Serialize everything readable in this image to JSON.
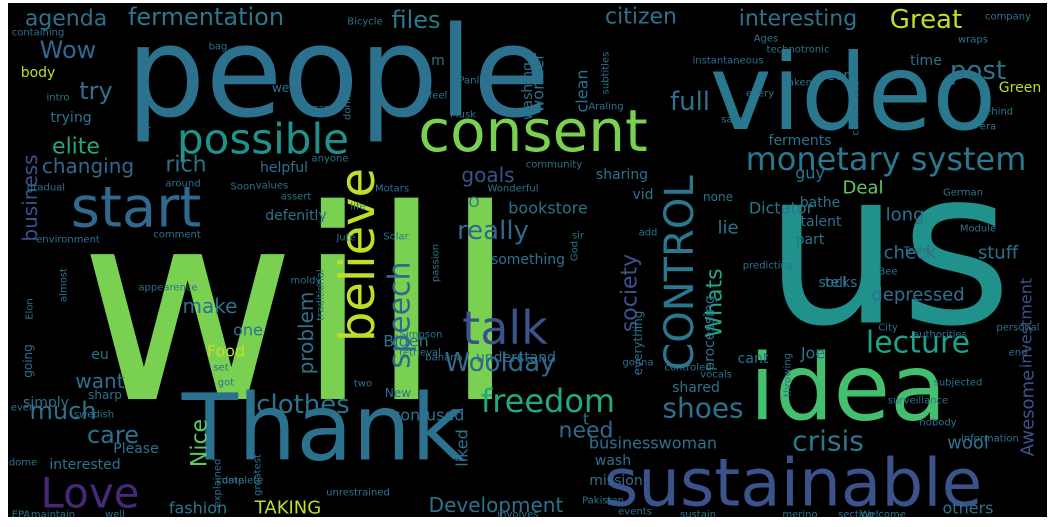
{
  "title": "",
  "words": [
    {
      "text": "will",
      "color": "#7ad151"
    },
    {
      "text": "us",
      "color": "#21918c"
    },
    {
      "text": "people",
      "color": "#2c728e"
    },
    {
      "text": "video",
      "color": "#2a788e"
    },
    {
      "text": "Thank",
      "color": "#2c728e"
    },
    {
      "text": "idea",
      "color": "#44bf70"
    },
    {
      "text": "sustainable",
      "color": "#3b528b"
    },
    {
      "text": "consent",
      "color": "#7ad151"
    },
    {
      "text": "start",
      "color": "#31688e"
    },
    {
      "text": "possible",
      "color": "#21918c"
    },
    {
      "text": "believe",
      "color": "#bddf26"
    },
    {
      "text": "talk",
      "color": "#3b528b"
    },
    {
      "text": "CONTROL",
      "color": "#2a788e"
    },
    {
      "text": "monetary system",
      "color": "#2a788e"
    },
    {
      "text": "Love",
      "color": "#482878"
    },
    {
      "text": "lecture",
      "color": "#1fa187"
    },
    {
      "text": "speech",
      "color": "#31688e"
    },
    {
      "text": "freedom",
      "color": "#22a884"
    },
    {
      "text": "clothes",
      "color": "#2c728e"
    },
    {
      "text": "shoes",
      "color": "#2c728e"
    },
    {
      "text": "crisis",
      "color": "#2a788e"
    },
    {
      "text": "Woolday",
      "color": "#31688e"
    },
    {
      "text": "Great",
      "color": "#bddf26"
    },
    {
      "text": "post",
      "color": "#2c728e"
    },
    {
      "text": "full",
      "color": "#2c728e"
    },
    {
      "text": "interesting",
      "color": "#2c728e"
    },
    {
      "text": "citizen",
      "color": "#2c728e"
    },
    {
      "text": "fermentation",
      "color": "#2a788e"
    },
    {
      "text": "agenda",
      "color": "#2c728e"
    },
    {
      "text": "files",
      "color": "#2a788e"
    },
    {
      "text": "Wow",
      "color": "#31688e"
    },
    {
      "text": "try",
      "color": "#2c728e"
    },
    {
      "text": "elite",
      "color": "#22a884"
    },
    {
      "text": "rich",
      "color": "#2c728e"
    },
    {
      "text": "changing",
      "color": "#31688e"
    },
    {
      "text": "business",
      "color": "#3b528b"
    },
    {
      "text": "goals",
      "color": "#3b528b"
    },
    {
      "text": "really",
      "color": "#31688e"
    },
    {
      "text": "society",
      "color": "#3b528b"
    },
    {
      "text": "Whats",
      "color": "#22a884"
    },
    {
      "text": "problem",
      "color": "#2c728e"
    },
    {
      "text": "make",
      "color": "#2c728e"
    },
    {
      "text": "Nice",
      "color": "#5ec962"
    },
    {
      "text": "care",
      "color": "#2c728e"
    },
    {
      "text": "much",
      "color": "#2c728e"
    },
    {
      "text": "want",
      "color": "#2c728e"
    },
    {
      "text": "need",
      "color": "#31688e"
    },
    {
      "text": "Development",
      "color": "#2c728e"
    },
    {
      "text": "TAKING",
      "color": "#bddf26"
    },
    {
      "text": "fashion",
      "color": "#2a788e"
    },
    {
      "text": "Awesome",
      "color": "#3b528b"
    },
    {
      "text": "depressed",
      "color": "#2c728e"
    },
    {
      "text": "investment",
      "color": "#3b528b"
    },
    {
      "text": "wool",
      "color": "#2c728e"
    },
    {
      "text": "others",
      "color": "#2c728e"
    },
    {
      "text": "check",
      "color": "#2c728e"
    },
    {
      "text": "stuff",
      "color": "#2c728e"
    },
    {
      "text": "long",
      "color": "#2c728e"
    },
    {
      "text": "Deal",
      "color": "#5ec962"
    },
    {
      "text": "guy",
      "color": "#2c728e"
    },
    {
      "text": "Dictator",
      "color": "#2c728e"
    },
    {
      "text": "lie",
      "color": "#2c728e"
    },
    {
      "text": "bookstore",
      "color": "#2c728e"
    },
    {
      "text": "Food",
      "color": "#bddf26"
    },
    {
      "text": "Joe",
      "color": "#2c728e"
    },
    {
      "text": "Biden",
      "color": "#2c728e"
    },
    {
      "text": "liked",
      "color": "#2c728e"
    },
    {
      "text": "confused",
      "color": "#2c728e"
    },
    {
      "text": "understand",
      "color": "#2c728e"
    },
    {
      "text": "businesswoman",
      "color": "#2c728e"
    },
    {
      "text": "shared",
      "color": "#2c728e"
    },
    {
      "text": "mission",
      "color": "#2c728e"
    },
    {
      "text": "interested",
      "color": "#2c728e"
    },
    {
      "text": "simply",
      "color": "#2c728e"
    },
    {
      "text": "sharp",
      "color": "#2c728e"
    },
    {
      "text": "going",
      "color": "#2c728e"
    },
    {
      "text": "eu",
      "color": "#2c728e"
    },
    {
      "text": "one",
      "color": "#2c728e"
    },
    {
      "text": "helpful",
      "color": "#2c728e"
    },
    {
      "text": "defenitly",
      "color": "#2c728e"
    },
    {
      "text": "sharing",
      "color": "#2c728e"
    },
    {
      "text": "processing",
      "color": "#2c728e"
    },
    {
      "text": "socks",
      "color": "#2c728e"
    },
    {
      "text": "tell",
      "color": "#2c728e"
    },
    {
      "text": "part",
      "color": "#2c728e"
    },
    {
      "text": "talent",
      "color": "#2c728e"
    },
    {
      "text": "bathe",
      "color": "#2c728e"
    },
    {
      "text": "ferments",
      "color": "#2c728e"
    },
    {
      "text": "seem",
      "color": "#2c728e"
    },
    {
      "text": "time",
      "color": "#2c728e"
    },
    {
      "text": "Green",
      "color": "#bddf26"
    },
    {
      "text": "clean",
      "color": "#2c728e"
    },
    {
      "text": "wonder",
      "color": "#2c728e"
    },
    {
      "text": "washing",
      "color": "#2c728e"
    },
    {
      "text": "vid",
      "color": "#2c728e"
    },
    {
      "text": "none",
      "color": "#2c728e"
    },
    {
      "text": "cant",
      "color": "#2c728e"
    },
    {
      "text": "something",
      "color": "#2c728e"
    },
    {
      "text": "everything",
      "color": "#2c728e"
    },
    {
      "text": "wash",
      "color": "#2c728e"
    },
    {
      "text": "body",
      "color": "#bddf26"
    },
    {
      "text": "trying",
      "color": "#2c728e"
    },
    {
      "text": "Please",
      "color": "#2c728e"
    },
    {
      "text": "Wonderful",
      "color": "#2c728e"
    },
    {
      "text": "Pakistan",
      "color": "#2c728e"
    },
    {
      "text": "German",
      "color": "#2c728e"
    },
    {
      "text": "surveillance",
      "color": "#2c728e"
    },
    {
      "text": "company",
      "color": "#2c728e"
    },
    {
      "text": "technotronic",
      "color": "#2c728e"
    },
    {
      "text": "Bicycle",
      "color": "#2c728e"
    },
    {
      "text": "Musk",
      "color": "#2c728e"
    },
    {
      "text": "Elon",
      "color": "#2c728e"
    },
    {
      "text": "Tesla",
      "color": "#2c728e"
    },
    {
      "text": "God",
      "color": "#2c728e"
    },
    {
      "text": "sponsored",
      "color": "#2c728e"
    },
    {
      "text": "intro",
      "color": "#2c728e"
    },
    {
      "text": "game",
      "color": "#2c728e"
    },
    {
      "text": "wet",
      "color": "#2c728e"
    },
    {
      "text": "Motars",
      "color": "#2c728e"
    },
    {
      "text": "Panlipunan",
      "color": "#2c728e"
    },
    {
      "text": "community",
      "color": "#2c728e"
    },
    {
      "text": "Solar",
      "color": "#2c728e"
    },
    {
      "text": "Jute",
      "color": "#2c728e"
    },
    {
      "text": "passion",
      "color": "#2c728e"
    },
    {
      "text": "values",
      "color": "#2c728e"
    },
    {
      "text": "assert",
      "color": "#2c728e"
    },
    {
      "text": "around",
      "color": "#2c728e"
    },
    {
      "text": "gradual",
      "color": "#2c728e"
    },
    {
      "text": "environment",
      "color": "#2c728e"
    },
    {
      "text": "comment",
      "color": "#2c728e"
    },
    {
      "text": "date",
      "color": "#2c728e"
    },
    {
      "text": "explained",
      "color": "#2c728e"
    },
    {
      "text": "greatest",
      "color": "#2c728e"
    },
    {
      "text": "complete",
      "color": "#2c728e"
    },
    {
      "text": "unrestrained",
      "color": "#2c728e"
    },
    {
      "text": "events",
      "color": "#2c728e"
    },
    {
      "text": "sustain",
      "color": "#2c728e"
    },
    {
      "text": "merino",
      "color": "#2c728e"
    },
    {
      "text": "section",
      "color": "#2c728e"
    },
    {
      "text": "Welcome",
      "color": "#2c728e"
    },
    {
      "text": "involves",
      "color": "#2c728e"
    },
    {
      "text": "well",
      "color": "#2c728e"
    },
    {
      "text": "maintain",
      "color": "#2c728e"
    },
    {
      "text": "EPA",
      "color": "#2c728e"
    },
    {
      "text": "dome",
      "color": "#2c728e"
    },
    {
      "text": "even",
      "color": "#2c728e"
    },
    {
      "text": "swedish",
      "color": "#2c728e"
    },
    {
      "text": "two",
      "color": "#2c728e"
    },
    {
      "text": "got",
      "color": "#2c728e"
    },
    {
      "text": "set",
      "color": "#2c728e"
    },
    {
      "text": "moldy",
      "color": "#2c728e"
    },
    {
      "text": "traditional",
      "color": "#2c728e"
    },
    {
      "text": "banana",
      "color": "#2c728e"
    },
    {
      "text": "retrieval",
      "color": "#2c728e"
    },
    {
      "text": "Simpson",
      "color": "#2c728e"
    },
    {
      "text": "sir",
      "color": "#2c728e"
    },
    {
      "text": "add",
      "color": "#2c728e"
    },
    {
      "text": "predicting",
      "color": "#2c728e"
    },
    {
      "text": "Bee",
      "color": "#2c728e"
    },
    {
      "text": "Module",
      "color": "#2c728e"
    },
    {
      "text": "City",
      "color": "#2c728e"
    },
    {
      "text": "personal",
      "color": "#2c728e"
    },
    {
      "text": "authorities",
      "color": "#2c728e"
    },
    {
      "text": "end",
      "color": "#2c728e"
    },
    {
      "text": "subjected",
      "color": "#2c728e"
    },
    {
      "text": "nobody",
      "color": "#2c728e"
    },
    {
      "text": "information",
      "color": "#2c728e"
    },
    {
      "text": "throwing",
      "color": "#2c728e"
    },
    {
      "text": "vocals",
      "color": "#2c728e"
    },
    {
      "text": "gonna",
      "color": "#2c728e"
    },
    {
      "text": "controled",
      "color": "#2c728e"
    },
    {
      "text": "appearence",
      "color": "#2c728e"
    },
    {
      "text": "almost",
      "color": "#2c728e"
    },
    {
      "text": "life",
      "color": "#2c728e"
    },
    {
      "text": "anyone",
      "color": "#2c728e"
    },
    {
      "text": "Soon",
      "color": "#2c728e"
    },
    {
      "text": "continuous",
      "color": "#2c728e"
    },
    {
      "text": "era",
      "color": "#2c728e"
    },
    {
      "text": "behind",
      "color": "#2c728e"
    },
    {
      "text": "taken",
      "color": "#2c728e"
    },
    {
      "text": "every",
      "color": "#2c728e"
    },
    {
      "text": "save",
      "color": "#2c728e"
    },
    {
      "text": "instantaneous",
      "color": "#2c728e"
    },
    {
      "text": "Ages",
      "color": "#2c728e"
    },
    {
      "text": "wraps",
      "color": "#2c728e"
    },
    {
      "text": "Araling",
      "color": "#2c728e"
    },
    {
      "text": "subtitles",
      "color": "#2c728e"
    },
    {
      "text": "feel",
      "color": "#2c728e"
    },
    {
      "text": "dominated",
      "color": "#2c728e"
    },
    {
      "text": "bag",
      "color": "#2c728e"
    },
    {
      "text": "containing",
      "color": "#2c728e"
    },
    {
      "text": "New",
      "color": "#2c728e"
    },
    {
      "text": "m",
      "color": "#2c728e"
    },
    {
      "text": "O",
      "color": "#2c728e"
    },
    {
      "text": "t",
      "color": "#2c728e"
    }
  ]
}
